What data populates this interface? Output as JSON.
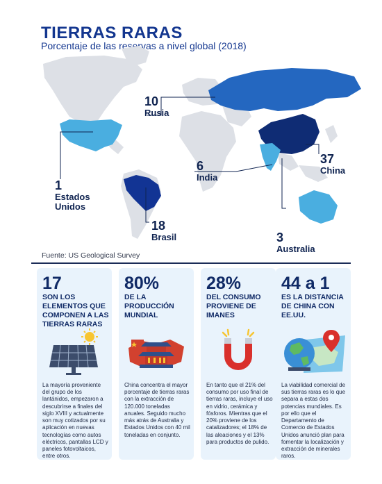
{
  "header": {
    "title": "TIERRAS RARAS",
    "subtitle": "Porcentaje de las reservas a nivel global (2018)"
  },
  "colors": {
    "dark": "#0f2c74",
    "mid": "#2b6cc0",
    "light": "#4aaee0",
    "land": "#dde0e6"
  },
  "chart_data": {
    "type": "map",
    "title": "TIERRAS RARAS",
    "subtitle": "Porcentaje de las reservas a nivel global (2018)",
    "unit": "%",
    "regions": [
      {
        "name": "China",
        "value": 37
      },
      {
        "name": "Brasil",
        "value": 18
      },
      {
        "name": "Rusia",
        "value": 10
      },
      {
        "name": "India",
        "value": 6
      },
      {
        "name": "Australia",
        "value": 3
      },
      {
        "name": "Estados Unidos",
        "value": 1
      }
    ]
  },
  "source": "Fuente: US Geological Survey",
  "cards": [
    {
      "big": "17",
      "head": "SON LOS ELEMENTOS QUE COMPONEN A LAS TIERRAS RARAS",
      "icon": "solar-panel-icon",
      "body": "La mayoría proveniente del grupo de los lantánidos, empezaron a descubrirse a finales del siglo XVIII y actualmente son muy cotizados por su aplicación en nuevas tecnologías como autos eléctricos, pantallas LCD y paneles fotovoltaicos, entre otros."
    },
    {
      "big": "80%",
      "head": "DE LA PRODUCCIÓN MUNDIAL",
      "icon": "china-temple-icon",
      "body": "China concentra el mayor porcentaje de tierras raras con la extracción de 120.000 toneladas anuales. Seguido mucho más atrás de Australia y Estados Unidos con 40 mil toneladas en conjunto."
    },
    {
      "big": "28%",
      "head": "DEL CONSUMO PROVIENE DE IMANES",
      "icon": "magnet-icon",
      "body": "En tanto que el 21% del consumo por uso final de tierras raras, incluye el uso en vidrio, cerámica y fósforos. Mientras que el 20% proviene de los catalizadores; el 18% de las aleaciones y el 13% para productos de pulido."
    },
    {
      "big": "44 a 1",
      "head": "ES LA DISTANCIA DE CHINA CON EE.UU.",
      "icon": "globe-map-pin-icon",
      "body": "La viabilidad comercial de sus tierras raras es lo que separa a estas dos potencias mundiales. Es por ello que el Departamento de Comercio de Estados Unidos anunció plan para fomentar la localización y extracción de minerales raros."
    }
  ]
}
